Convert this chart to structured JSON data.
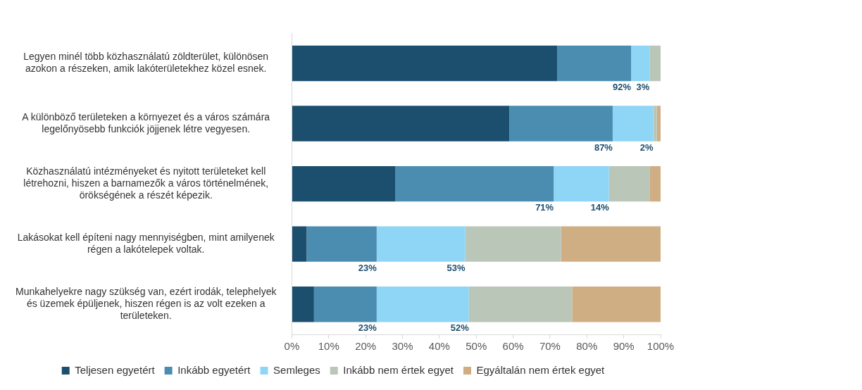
{
  "chart_data": {
    "type": "bar",
    "orientation": "horizontal",
    "stacked": true,
    "categories": [
      "Legyen minél több közhasználatú zöldterület, különösen azokon a részeken, amik lakóterületekhez közel esnek.",
      "A különböző területeken a környezet és a város számára legelőnyösebb funkciók jöjjenek létre vegyesen.",
      "Közhasználatú intézményeket és nyitott területeket kell létrehozni, hiszen a barnamezők a város történelmének, örökségének a részét képezik.",
      "Lakásokat kell építeni nagy mennyiségben, mint amilyenek régen a lakótelepek voltak.",
      "Munkahelyekre nagy szükség van, ezért irodák, telephelyek és üzemek épüljenek, hiszen régen is az volt ezeken a területeken."
    ],
    "series": [
      {
        "name": "Teljesen egyetért",
        "color": "#1c4e6e",
        "values": [
          72,
          59,
          28,
          4,
          6
        ]
      },
      {
        "name": "Inkább egyetért",
        "color": "#4a8db0",
        "values": [
          20,
          28,
          43,
          19,
          17
        ]
      },
      {
        "name": "Semleges",
        "color": "#8fd5f5",
        "values": [
          5,
          11,
          15,
          24,
          25
        ]
      },
      {
        "name": "Inkább nem értek egyet",
        "color": "#b9c6b8",
        "values": [
          3,
          1,
          11,
          26,
          28
        ]
      },
      {
        "name": "Egyáltalán nem értek egyet",
        "color": "#cfae84",
        "values": [
          0,
          1,
          3,
          27,
          24
        ]
      }
    ],
    "xlim": [
      0,
      100
    ],
    "xticks": [
      {
        "value": 0,
        "label": "0%"
      },
      {
        "value": 10,
        "label": "10%"
      },
      {
        "value": 20,
        "label": "20%"
      },
      {
        "value": 30,
        "label": "30%"
      },
      {
        "value": 40,
        "label": "40%"
      },
      {
        "value": 50,
        "label": "50%"
      },
      {
        "value": 60,
        "label": "60%"
      },
      {
        "value": 70,
        "label": "70%"
      },
      {
        "value": 80,
        "label": "80%"
      },
      {
        "value": 90,
        "label": "90%"
      },
      {
        "value": 100,
        "label": "100%"
      }
    ],
    "annotations": [
      {
        "text": "92%",
        "x": 92,
        "y": "Legyen minél több közhasználatú zöldterület, különösen azokon a részeken, amik lakóterületekhez közel esnek."
      },
      {
        "text": "3%",
        "x": 97,
        "y": "Legyen minél több közhasználatú zöldterület, különösen azokon a részeken, amik lakóterületekhez közel esnek."
      },
      {
        "text": "87%",
        "x": 87,
        "y": "A különböző területeken a környezet és a város számára legelőnyösebb funkciók jöjjenek létre vegyesen."
      },
      {
        "text": "2%",
        "x": 98,
        "y": "A különböző területeken a környezet és a város számára legelőnyösebb funkciók jöjjenek létre vegyesen."
      },
      {
        "text": "71%",
        "x": 71,
        "y": "Közhasználatú intézményeket és nyitott területeket kell létrehozni, hiszen a barnamezők a város történelmének, örökségének a részét képezik."
      },
      {
        "text": "14%",
        "x": 86,
        "y": "Közhasználatú intézményeket és nyitott területeket kell létrehozni, hiszen a barnamezők a város történelmének, örökségének a részét képezik."
      },
      {
        "text": "23%",
        "x": 23,
        "y": "Lakásokat kell építeni nagy mennyiségben, mint amilyenek régen a lakótelepek voltak."
      },
      {
        "text": "53%",
        "x": 47,
        "y": "Lakásokat kell építeni nagy mennyiségben, mint amilyenek régen a lakótelepek voltak."
      },
      {
        "text": "23%",
        "x": 23,
        "y": "Munkahelyekre nagy szükség van, ezért irodák, telephelyek és üzemek épüljenek, hiszen régen is az volt ezeken a területeken."
      },
      {
        "text": "52%",
        "x": 48,
        "y": "Munkahelyekre nagy szükség van, ezért irodák, telephelyek és üzemek épüljenek, hiszen régen is az volt ezeken a területeken."
      }
    ],
    "grid": false,
    "legend": "bottom"
  }
}
